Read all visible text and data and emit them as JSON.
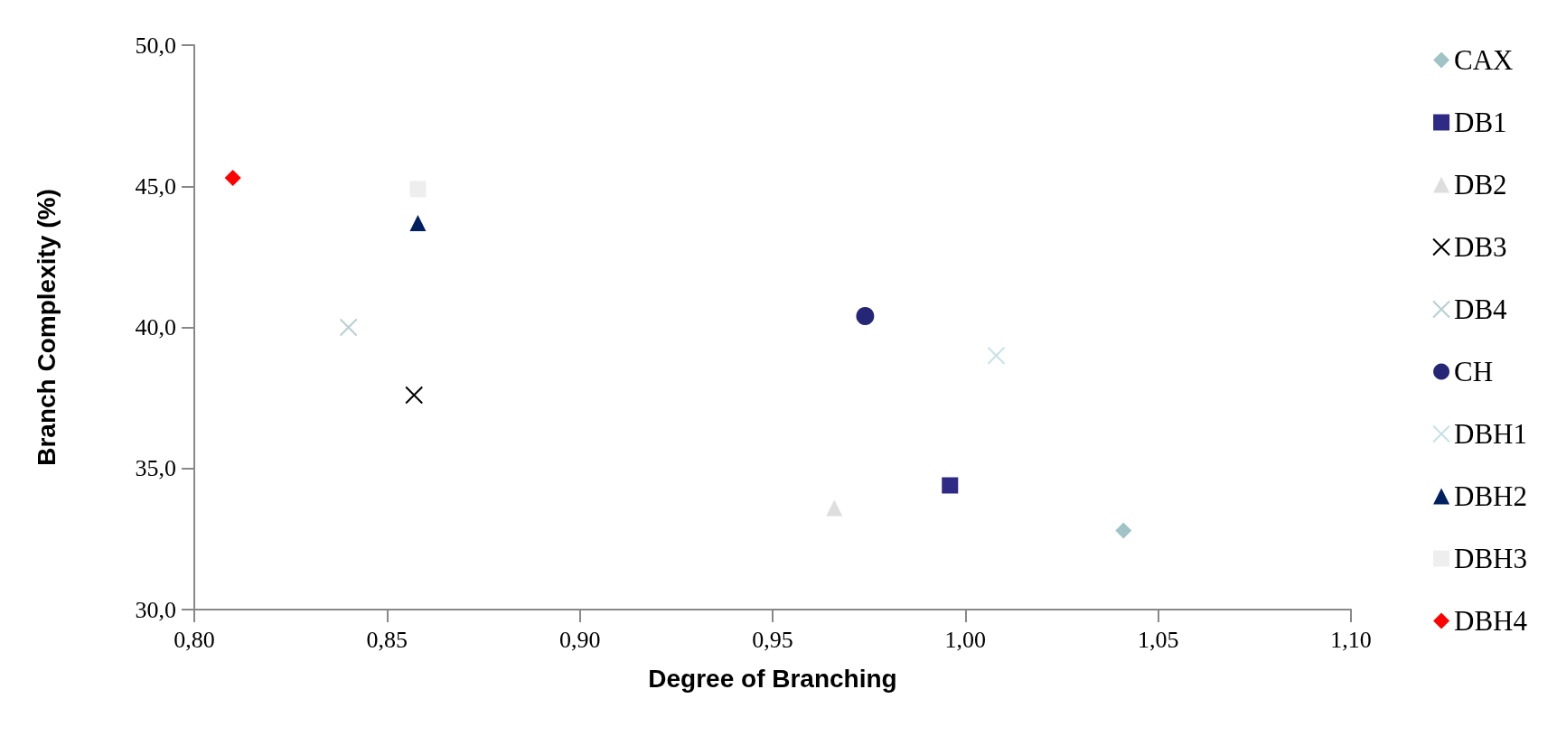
{
  "chart_data": {
    "type": "scatter",
    "xlabel": "Degree of Branching",
    "ylabel": "Branch Complexity (%)",
    "xlim": [
      0.8,
      1.1
    ],
    "ylim": [
      30,
      50
    ],
    "xticks": [
      {
        "value": 0.8,
        "label": "0,80"
      },
      {
        "value": 0.85,
        "label": "0,85"
      },
      {
        "value": 0.9,
        "label": "0,90"
      },
      {
        "value": 0.95,
        "label": "0,95"
      },
      {
        "value": 1.0,
        "label": "1,00"
      },
      {
        "value": 1.05,
        "label": "1,05"
      },
      {
        "value": 1.1,
        "label": "1,10"
      }
    ],
    "yticks": [
      {
        "value": 30,
        "label": "30,0"
      },
      {
        "value": 35,
        "label": "35,0"
      },
      {
        "value": 40,
        "label": "40,0"
      },
      {
        "value": 45,
        "label": "45,0"
      },
      {
        "value": 50,
        "label": "50,0"
      }
    ],
    "grid": false,
    "legend": "right",
    "series": [
      {
        "name": "CAX",
        "color": "#9fc3c6",
        "marker": "diamond",
        "x": [
          1.041
        ],
        "values": [
          32.8
        ]
      },
      {
        "name": "DB1",
        "color": "#2e2a85",
        "marker": "square",
        "x": [
          0.996
        ],
        "values": [
          34.4
        ]
      },
      {
        "name": "DB2",
        "color": "#dedede",
        "marker": "triangle",
        "x": [
          0.966
        ],
        "values": [
          33.6
        ]
      },
      {
        "name": "DB3",
        "color": "#000000",
        "marker": "cross",
        "x": [
          0.857
        ],
        "values": [
          37.6
        ]
      },
      {
        "name": "DB4",
        "color": "#b7cfd1",
        "marker": "cross",
        "x": [
          0.84
        ],
        "values": [
          40.0
        ]
      },
      {
        "name": "CH",
        "color": "#262677",
        "marker": "circle",
        "x": [
          0.974
        ],
        "values": [
          40.4
        ]
      },
      {
        "name": "DBH1",
        "color": "#c5e3e6",
        "marker": "cross",
        "x": [
          1.008
        ],
        "values": [
          39.0
        ]
      },
      {
        "name": "DBH2",
        "color": "#002060",
        "marker": "triangle",
        "x": [
          0.858
        ],
        "values": [
          43.7
        ]
      },
      {
        "name": "DBH3",
        "color": "#eeeeee",
        "marker": "square",
        "x": [
          0.858
        ],
        "values": [
          44.9
        ]
      },
      {
        "name": "DBH4",
        "color": "#ff0000",
        "marker": "diamond",
        "x": [
          0.81
        ],
        "values": [
          45.3
        ]
      }
    ]
  }
}
